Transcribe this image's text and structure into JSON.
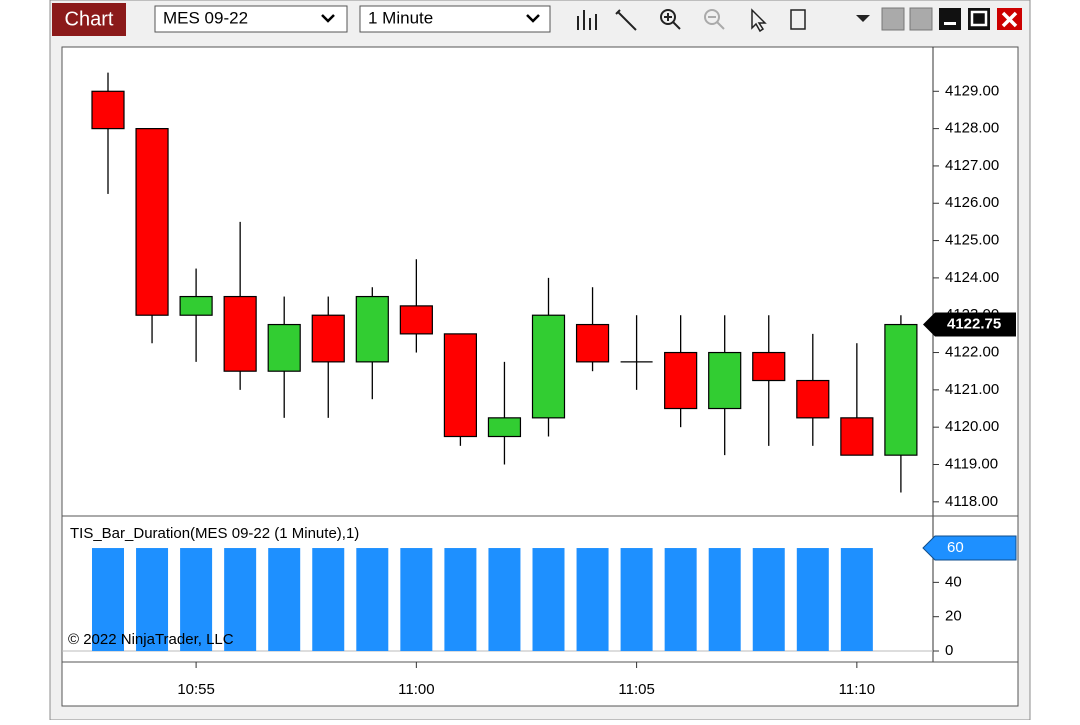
{
  "window": {
    "title": "Chart",
    "instrument": "MES 09-22",
    "interval": "1 Minute"
  },
  "chart_data": [
    {
      "type": "candlestick",
      "up_color": "#32cd32",
      "down_color": "#ff0000",
      "open": [
        4129,
        4128,
        4123,
        4123.5,
        4121.5,
        4123,
        4121.75,
        4123.25,
        4122.5,
        4119.75,
        4120.25,
        4122.75,
        4121.75,
        4122,
        4120.5,
        4122,
        4121.25,
        4120.25,
        4119.25
      ],
      "high": [
        4129.5,
        4128,
        4124.25,
        4125.5,
        4123.5,
        4123.5,
        4123.75,
        4124.5,
        4122.5,
        4121.75,
        4124,
        4123.75,
        4123,
        4123,
        4123,
        4123,
        4122.5,
        4122.25,
        4123
      ],
      "low": [
        4126.25,
        4122.25,
        4121.75,
        4121,
        4120.25,
        4120.25,
        4120.75,
        4122,
        4119.5,
        4119,
        4119.75,
        4121.5,
        4121,
        4120,
        4119.25,
        4119.5,
        4119.5,
        4119.25,
        4118.25
      ],
      "close": [
        4128,
        4123,
        4123.5,
        4121.5,
        4122.75,
        4121.75,
        4123.5,
        4122.5,
        4119.75,
        4120.25,
        4123,
        4121.75,
        4121.75,
        4120.5,
        4122,
        4121.25,
        4120.25,
        4119.25,
        4122.75
      ],
      "last_price": 4122.75,
      "ylim": [
        4117.62,
        4130.16
      ],
      "yticks": [
        {
          "value": 4118,
          "label": "4118.00"
        },
        {
          "value": 4119,
          "label": "4119.00"
        },
        {
          "value": 4120,
          "label": "4120.00"
        },
        {
          "value": 4121,
          "label": "4121.00"
        },
        {
          "value": 4122,
          "label": "4122.00"
        },
        {
          "value": 4123,
          "label": "4123.00"
        },
        {
          "value": 4124,
          "label": "4124.00"
        },
        {
          "value": 4125,
          "label": "4125.00"
        },
        {
          "value": 4126,
          "label": "4126.00"
        },
        {
          "value": 4127,
          "label": "4127.00"
        },
        {
          "value": 4128,
          "label": "4128.00"
        },
        {
          "value": 4129,
          "label": "4129.00"
        }
      ]
    },
    {
      "type": "bar",
      "title": "TIS_Bar_Duration(MES 09-22 (1 Minute),1)",
      "annotation": "© 2022 NinjaTrader, LLC",
      "color": "#1e90ff",
      "categories": [
        null,
        null,
        "10:55",
        null,
        null,
        null,
        null,
        "11:00",
        null,
        null,
        null,
        null,
        "11:05",
        null,
        null,
        null,
        null,
        "11:10",
        null
      ],
      "values": [
        60,
        60,
        60,
        60,
        60,
        60,
        60,
        60,
        60,
        60,
        60,
        60,
        60,
        60,
        60,
        60,
        60,
        60,
        null
      ],
      "last_value": 60,
      "ylim": [
        -6.4,
        77.5
      ],
      "yticks": [
        0,
        20,
        40,
        60
      ]
    }
  ]
}
